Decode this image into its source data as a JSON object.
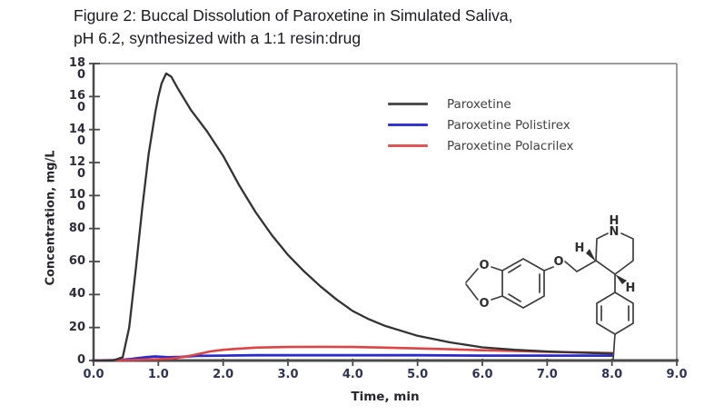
{
  "title": {
    "line1": "Figure 2: Buccal Dissolution of Paroxetine in Simulated Saliva,",
    "line2": "pH 6.2, synthesized with a 1:1 resin:drug"
  },
  "axes": {
    "y_label": "Concentration, mg/L",
    "x_label": "Time, min",
    "y_ticks": [
      "180",
      "160",
      "140",
      "120",
      "100",
      "80",
      "60",
      "40",
      "20",
      "0"
    ],
    "x_ticks": [
      "0.0",
      "1.0",
      "2.0",
      "3.0",
      "4.0",
      "5.0",
      "6.0",
      "7.0",
      "8.0",
      "9.0"
    ]
  },
  "legend": {
    "items": [
      {
        "label": "Paroxetine",
        "swatch_color": "#4d4d4d"
      },
      {
        "label": "Paroxetine Polistirex",
        "swatch_color": "#3434d2"
      },
      {
        "label": "Paroxetine Polacrilex",
        "swatch_color": "#e25555"
      }
    ]
  },
  "colors": {
    "axis_dark": "#4a4a4a",
    "frame_gray": "#9b9b9b",
    "series_black": "#333333",
    "series_blue": "#2c2ccd",
    "series_red": "#dd4444"
  },
  "chart_data": {
    "type": "line",
    "title": "Figure 2: Buccal Dissolution of Paroxetine in Simulated Saliva, pH 6.2, synthesized with a 1:1 resin:drug",
    "xlabel": "Time, min",
    "ylabel": "Concentration, mg/L",
    "xlim": [
      0,
      9
    ],
    "ylim": [
      0,
      180
    ],
    "x_tick_step": 1.0,
    "y_tick_step": 20,
    "grid": false,
    "legend_position": "upper center",
    "series": [
      {
        "name": "Paroxetine",
        "color": "#333333",
        "x": [
          0,
          0.3,
          0.45,
          0.55,
          0.65,
          0.75,
          0.85,
          0.95,
          1.0,
          1.05,
          1.12,
          1.2,
          1.3,
          1.5,
          1.75,
          2.0,
          2.25,
          2.5,
          2.75,
          3.0,
          3.25,
          3.5,
          3.75,
          4.0,
          4.25,
          4.5,
          4.75,
          5.0,
          5.5,
          6.0,
          6.5,
          7.0,
          7.5,
          8.0
        ],
        "y": [
          0,
          0,
          2,
          20,
          55,
          92,
          125,
          150,
          160,
          168,
          174,
          172,
          165,
          152,
          139,
          124,
          106,
          90,
          76,
          64,
          54,
          45,
          37,
          30,
          25,
          21,
          18,
          15,
          11,
          8,
          6.5,
          5.5,
          4.8,
          4.2
        ]
      },
      {
        "name": "Paroxetine Polistirex",
        "color": "#2c2ccd",
        "x": [
          0,
          0.4,
          0.6,
          0.8,
          0.95,
          1.15,
          1.35,
          1.6,
          2.0,
          2.5,
          3.0,
          4.0,
          5.0,
          6.0,
          7.0,
          8.0
        ],
        "y": [
          0,
          0.3,
          1,
          2,
          2.5,
          2,
          2.2,
          2.8,
          3,
          3.2,
          3.2,
          3.2,
          3.2,
          3,
          3,
          3
        ]
      },
      {
        "name": "Paroxetine Polacrilex",
        "color": "#dd4444",
        "x": [
          0,
          0.5,
          1.0,
          1.2,
          1.4,
          1.6,
          1.8,
          2.0,
          2.25,
          2.5,
          3.0,
          3.5,
          4.0,
          4.5,
          5.0,
          5.5,
          6.0,
          6.5,
          7.0,
          7.5,
          8.0
        ],
        "y": [
          0,
          0.3,
          0.8,
          1.2,
          2.2,
          3.8,
          5.5,
          6.5,
          7.2,
          7.8,
          8.2,
          8.3,
          8.2,
          7.8,
          7.3,
          6.8,
          6.2,
          5.8,
          5.3,
          4.9,
          4.5
        ]
      }
    ]
  },
  "molecule": {
    "atoms": {
      "h_amine": "H",
      "n_amine": "N",
      "h_c3": "H",
      "h_c4": "H",
      "o_ether": "O",
      "o_dioxole_top": "O",
      "o_dioxole_bottom": "O"
    }
  }
}
